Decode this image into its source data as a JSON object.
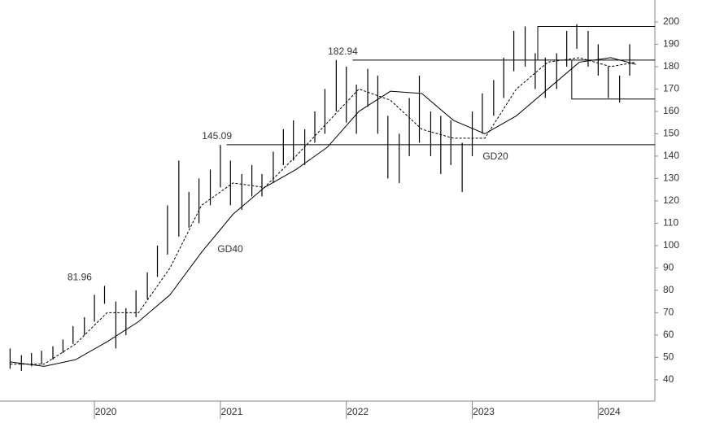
{
  "chart_data": {
    "type": "ohlc",
    "x": [
      2019.33,
      2019.42,
      2019.5,
      2019.58,
      2019.67,
      2019.75,
      2019.83,
      2019.92,
      2020.0,
      2020.08,
      2020.17,
      2020.25,
      2020.33,
      2020.42,
      2020.5,
      2020.58,
      2020.67,
      2020.75,
      2020.83,
      2020.92,
      2021.0,
      2021.08,
      2021.17,
      2021.25,
      2021.33,
      2021.42,
      2021.5,
      2021.58,
      2021.67,
      2021.75,
      2021.83,
      2021.92,
      2022.0,
      2022.08,
      2022.17,
      2022.25,
      2022.33,
      2022.42,
      2022.5,
      2022.58,
      2022.67,
      2022.75,
      2022.83,
      2022.92,
      2023.0,
      2023.08,
      2023.17,
      2023.25,
      2023.33,
      2023.42,
      2023.5,
      2023.58,
      2023.67,
      2023.75,
      2023.83,
      2023.92,
      2024.0,
      2024.08,
      2024.17,
      2024.25
    ],
    "low": [
      45,
      44,
      46,
      47,
      49,
      52,
      56,
      60,
      66,
      74,
      54,
      60,
      68,
      76,
      86,
      96,
      104,
      108,
      110,
      118,
      126,
      118,
      116,
      122,
      122,
      128,
      136,
      138,
      136,
      146,
      150,
      160,
      155,
      150,
      162,
      150,
      130,
      128,
      140,
      146,
      140,
      132,
      136,
      124,
      140,
      150,
      158,
      166,
      178,
      180,
      170,
      166,
      170,
      180,
      188,
      180,
      176,
      166,
      164,
      176
    ],
    "high": [
      54,
      51,
      52,
      53,
      55,
      58,
      64,
      68,
      78,
      82,
      75,
      72,
      80,
      88,
      100,
      118,
      138,
      124,
      130,
      134,
      145,
      138,
      132,
      136,
      132,
      142,
      152,
      156,
      152,
      160,
      170,
      183,
      180,
      172,
      179,
      176,
      158,
      150,
      166,
      176,
      160,
      158,
      156,
      146,
      160,
      168,
      174,
      184,
      196,
      198,
      186,
      184,
      186,
      196,
      199,
      196,
      190,
      180,
      176,
      190
    ],
    "lines": [
      {
        "name": "GD40",
        "style": "solid",
        "x": [
          2019.33,
          2019.6,
          2019.85,
          2020.1,
          2020.35,
          2020.6,
          2020.85,
          2021.1,
          2021.35,
          2021.6,
          2021.85,
          2022.1,
          2022.35,
          2022.6,
          2022.85,
          2023.1,
          2023.35,
          2023.6,
          2023.85,
          2024.1,
          2024.3
        ],
        "values": [
          48,
          46,
          49,
          57,
          66,
          78,
          97,
          114,
          126,
          134,
          144,
          160,
          169,
          168,
          156,
          150,
          158,
          170,
          182,
          184,
          181
        ]
      },
      {
        "name": "GD20",
        "style": "dashed",
        "x": [
          2019.33,
          2019.6,
          2019.85,
          2020.1,
          2020.35,
          2020.6,
          2020.85,
          2021.1,
          2021.35,
          2021.6,
          2021.85,
          2022.1,
          2022.35,
          2022.6,
          2022.85,
          2023.1,
          2023.35,
          2023.6,
          2023.85,
          2024.1,
          2024.3
        ],
        "values": [
          47,
          47,
          56,
          70,
          70,
          90,
          118,
          128,
          126,
          140,
          155,
          170,
          165,
          152,
          148,
          148,
          170,
          182,
          184,
          180,
          182
        ]
      }
    ],
    "annotations": [
      {
        "x": 2019.96,
        "value": 81.96
      },
      {
        "x": 2021.05,
        "value": 145.09
      },
      {
        "x": 2022.05,
        "value": 182.94
      }
    ],
    "box": {
      "top": 198,
      "bottom": 165.5,
      "x_top": 2023.52,
      "x_bottom": 2023.79
    },
    "xlim": [
      2019.25,
      2024.45
    ],
    "xticks": [
      2020,
      2021,
      2022,
      2023,
      2024
    ],
    "ylim": [
      30.5,
      209.8
    ],
    "yticks": [
      40,
      50,
      60,
      70,
      80,
      90,
      100,
      110,
      120,
      130,
      140,
      150,
      160,
      170,
      180,
      190,
      200
    ]
  }
}
